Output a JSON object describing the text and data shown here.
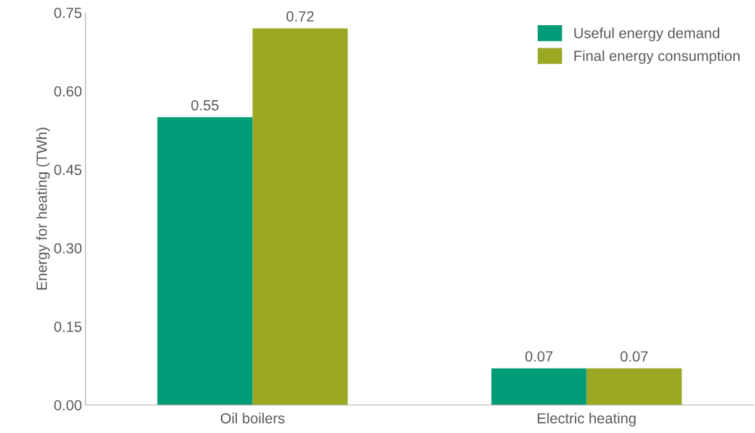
{
  "chart_data": {
    "type": "bar",
    "ylabel": "Energy for heating (TWh)",
    "categories": [
      "Oil boilers",
      "Electric heating"
    ],
    "series": [
      {
        "name": "Useful energy demand",
        "color": "#009b77",
        "values": [
          0.55,
          0.07
        ]
      },
      {
        "name": "Final energy consumption",
        "color": "#9aa823",
        "values": [
          0.72,
          0.07
        ]
      }
    ],
    "ylim": [
      0,
      0.75
    ],
    "yticks": [
      {
        "value": 0,
        "label": "0.00"
      },
      {
        "value": 0.15,
        "label": "0.15"
      },
      {
        "value": 0.3,
        "label": "0.30"
      },
      {
        "value": 0.45,
        "label": "0.45"
      },
      {
        "value": 0.6,
        "label": "0.60"
      },
      {
        "value": 0.75,
        "label": "0.75"
      }
    ],
    "data_labels": true,
    "grid": false,
    "legend": "top right"
  }
}
